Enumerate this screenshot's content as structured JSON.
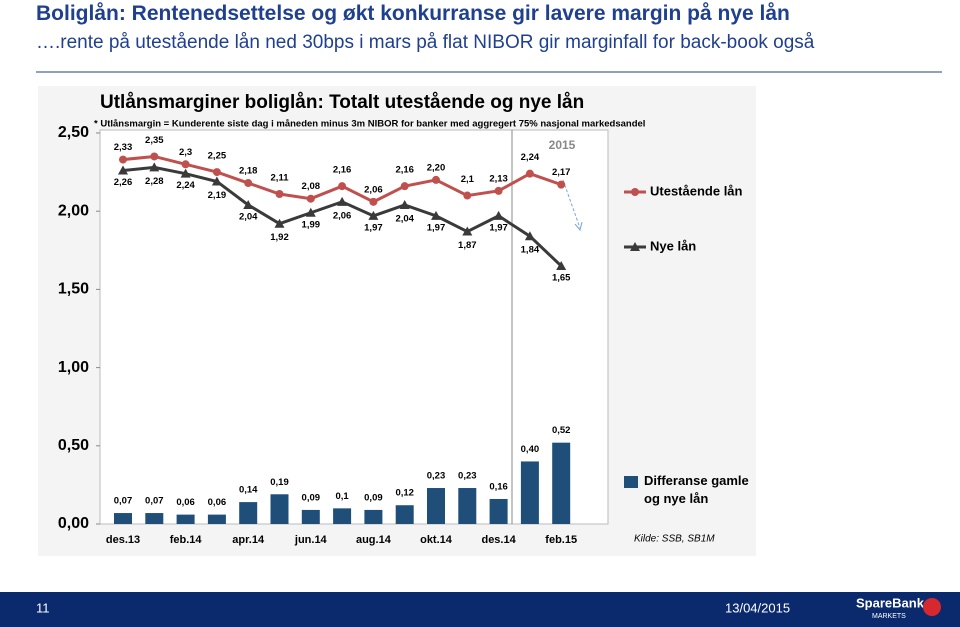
{
  "header": {
    "title": "Boliglån: Rentenedsettelse og økt konkurranse gir lavere margin på nye lån",
    "subtitle": "….rente på utestående lån ned 30bps i mars på flat NIBOR gir marginfall for back-book også"
  },
  "chart_data": {
    "type": "combo",
    "title": "Utlånsmarginer boliglån: Totalt utestående og nye lån",
    "subtitle": "* Utlånsmargin = Kunderente siste dag i måneden minus 3m NIBOR for banker med aggregert 75% nasjonal markedsandel",
    "annotation": "2015",
    "source": "Kilde: SSB, SB1M",
    "categories": [
      "des.13",
      null,
      "feb.14",
      null,
      "apr.14",
      null,
      "jun.14",
      null,
      "aug.14",
      null,
      "okt.14",
      null,
      "des.14",
      null,
      "feb.15"
    ],
    "series": [
      {
        "name": "Utestående lån",
        "type": "line",
        "marker": "circle",
        "color": "#c0504d",
        "values": [
          2.33,
          2.35,
          2.3,
          2.25,
          2.18,
          2.11,
          2.08,
          2.16,
          2.06,
          2.16,
          2.2,
          2.1,
          2.13,
          2.24,
          2.17
        ],
        "value_labels": [
          "2,33",
          "2,35",
          "2,3",
          "2,25",
          "2,18",
          "2,11",
          "2,08",
          "2,16",
          "2,06",
          "2,16",
          "2,20",
          "2,1",
          "2,13",
          "2,24",
          "2,17"
        ]
      },
      {
        "name": "Nye lån",
        "type": "line",
        "marker": "triangle",
        "color": "#3a3a3a",
        "values": [
          2.26,
          2.28,
          2.24,
          2.19,
          2.04,
          1.92,
          1.99,
          2.06,
          1.97,
          2.04,
          1.97,
          1.87,
          1.97,
          1.84,
          1.65
        ],
        "value_labels": [
          "2,26",
          "2,28",
          "2,24",
          "2,19",
          "2,04",
          "1,92",
          "1,99",
          "2,06",
          "1,97",
          "2,04",
          "1,97",
          "1,87",
          "1,97",
          "1,84",
          "1,65"
        ]
      },
      {
        "name": "Differanse gamle og nye lån",
        "type": "bar",
        "color": "#1f4e79",
        "values": [
          0.07,
          0.07,
          0.06,
          0.06,
          0.14,
          0.19,
          0.09,
          0.1,
          0.09,
          0.12,
          0.23,
          0.23,
          0.16,
          0.4,
          0.52
        ],
        "value_labels": [
          "0,07",
          "0,07",
          "0,06",
          "0,06",
          "0,14",
          "0,19",
          "0,09",
          "0,1",
          "0,09",
          "0,12",
          "0,23",
          "0,23",
          "0,16",
          "0,40",
          "0,52"
        ]
      }
    ],
    "ylim": [
      0,
      2.5
    ],
    "yticks": [
      {
        "value": 0,
        "label": "0,00"
      },
      {
        "value": 0.5,
        "label": "0,50"
      },
      {
        "value": 1,
        "label": "1,00"
      },
      {
        "value": 1.5,
        "label": "1,50"
      },
      {
        "value": 2,
        "label": "2,00"
      },
      {
        "value": 2.5,
        "label": "2,50"
      }
    ],
    "legend": "right"
  },
  "footer": {
    "page": "11",
    "date": "13/04/2015",
    "logo": "SpareBank",
    "logo_sub": "MARKETS"
  }
}
